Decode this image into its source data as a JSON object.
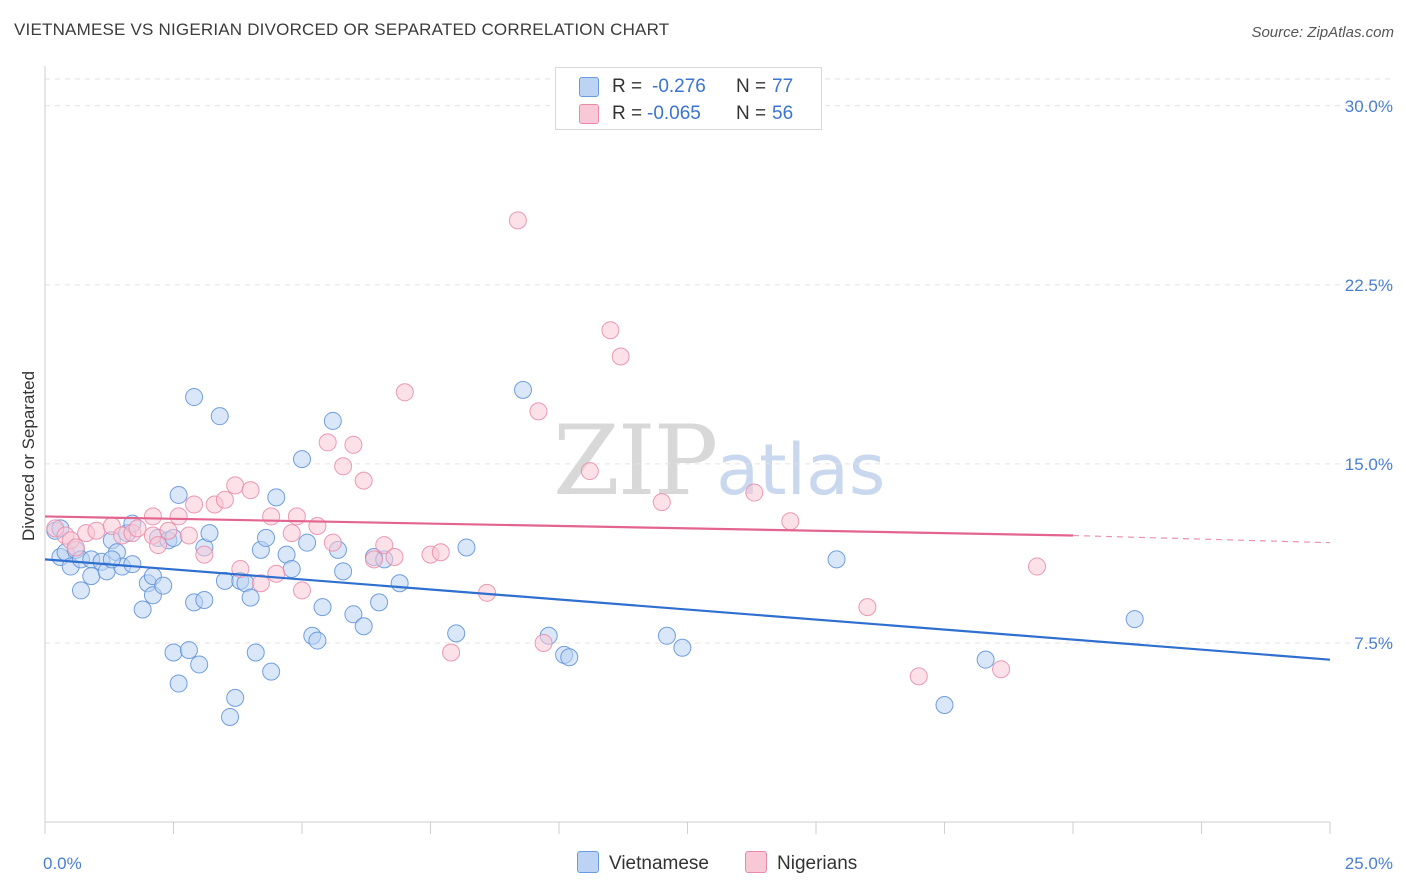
{
  "title": "VIETNAMESE VS NIGERIAN DIVORCED OR SEPARATED CORRELATION CHART",
  "source": "Source: ZipAtlas.com",
  "watermark": {
    "zip": "ZIP",
    "atlas": "atlas"
  },
  "legend": {
    "rows": [
      {
        "r_label": "R =",
        "r_value": "-0.276",
        "n_label": "N =",
        "n_value": "77",
        "color": "#6a9be0",
        "fill": "#bcd3f3"
      },
      {
        "r_label": "R =",
        "r_value": "-0.065",
        "n_label": "N =",
        "n_value": "56",
        "color": "#e88aa8",
        "fill": "#f9c8d6"
      }
    ],
    "bottom": [
      "Vietnamese",
      "Nigerians"
    ]
  },
  "chart_data": {
    "type": "scatter",
    "title": "VIETNAMESE VS NIGERIAN DIVORCED OR SEPARATED CORRELATION CHART",
    "xlabel": "",
    "ylabel": "Divorced or Separated",
    "xlim": [
      0,
      25
    ],
    "ylim": [
      0,
      31.5
    ],
    "x_ticks_labels": [
      "0.0%",
      "25.0%"
    ],
    "y_ticks": [
      7.5,
      15.0,
      22.5,
      30.0
    ],
    "y_ticks_labels": [
      "7.5%",
      "15.0%",
      "22.5%",
      "30.0%"
    ],
    "grid": "horizontal dashed",
    "series": [
      {
        "name": "Vietnamese",
        "color": "#5b8fd8",
        "fill": "#bcd3f3",
        "trend": {
          "x": [
            0,
            25
          ],
          "y": [
            11.0,
            6.8
          ],
          "color": "#2f6fd0"
        },
        "points": [
          [
            0.2,
            12.2
          ],
          [
            0.3,
            11.1
          ],
          [
            0.4,
            11.3
          ],
          [
            0.6,
            11.4
          ],
          [
            0.5,
            10.7
          ],
          [
            0.7,
            11.0
          ],
          [
            0.9,
            11.0
          ],
          [
            0.7,
            9.7
          ],
          [
            0.9,
            10.3
          ],
          [
            1.1,
            10.9
          ],
          [
            1.2,
            10.5
          ],
          [
            1.3,
            11.8
          ],
          [
            1.4,
            11.3
          ],
          [
            1.5,
            10.7
          ],
          [
            1.6,
            12.1
          ],
          [
            1.7,
            10.8
          ],
          [
            1.7,
            12.5
          ],
          [
            1.9,
            8.9
          ],
          [
            2.0,
            10.0
          ],
          [
            2.1,
            9.5
          ],
          [
            2.1,
            10.3
          ],
          [
            2.2,
            11.9
          ],
          [
            2.3,
            9.9
          ],
          [
            2.4,
            11.8
          ],
          [
            2.5,
            7.1
          ],
          [
            2.6,
            5.8
          ],
          [
            2.6,
            13.7
          ],
          [
            2.8,
            7.2
          ],
          [
            2.9,
            17.8
          ],
          [
            2.9,
            9.2
          ],
          [
            3.0,
            6.6
          ],
          [
            3.1,
            11.5
          ],
          [
            3.1,
            9.3
          ],
          [
            3.2,
            12.1
          ],
          [
            3.4,
            17.0
          ],
          [
            3.5,
            10.1
          ],
          [
            3.6,
            4.4
          ],
          [
            3.7,
            5.2
          ],
          [
            3.8,
            10.1
          ],
          [
            3.9,
            10.0
          ],
          [
            4.0,
            9.4
          ],
          [
            4.1,
            7.1
          ],
          [
            4.2,
            11.4
          ],
          [
            4.3,
            11.9
          ],
          [
            4.4,
            6.3
          ],
          [
            4.5,
            13.6
          ],
          [
            4.7,
            11.2
          ],
          [
            4.8,
            10.6
          ],
          [
            5.0,
            15.2
          ],
          [
            5.1,
            11.7
          ],
          [
            5.2,
            7.8
          ],
          [
            5.3,
            7.6
          ],
          [
            5.4,
            9.0
          ],
          [
            5.6,
            16.8
          ],
          [
            5.7,
            11.4
          ],
          [
            5.8,
            10.5
          ],
          [
            6.0,
            8.7
          ],
          [
            6.2,
            8.2
          ],
          [
            6.4,
            11.1
          ],
          [
            6.5,
            9.2
          ],
          [
            6.6,
            11.0
          ],
          [
            6.9,
            10.0
          ],
          [
            8.0,
            7.9
          ],
          [
            8.2,
            11.5
          ],
          [
            9.3,
            18.1
          ],
          [
            9.8,
            7.8
          ],
          [
            10.1,
            7.0
          ],
          [
            10.2,
            6.9
          ],
          [
            12.1,
            7.8
          ],
          [
            12.4,
            7.3
          ],
          [
            15.4,
            11.0
          ],
          [
            17.5,
            4.9
          ],
          [
            18.3,
            6.8
          ],
          [
            21.2,
            8.5
          ],
          [
            0.3,
            12.3
          ],
          [
            1.3,
            11.0
          ],
          [
            2.5,
            11.9
          ]
        ]
      },
      {
        "name": "Nigerians",
        "color": "#e88aa8",
        "fill": "#f9c8d6",
        "trend": {
          "x": [
            0,
            20
          ],
          "y": [
            12.8,
            12.0
          ],
          "dashed_to": [
            25,
            11.7
          ],
          "color": "#e3648e"
        },
        "points": [
          [
            0.2,
            12.3
          ],
          [
            0.4,
            12.0
          ],
          [
            0.5,
            11.8
          ],
          [
            0.6,
            11.5
          ],
          [
            0.8,
            12.1
          ],
          [
            1.0,
            12.2
          ],
          [
            1.3,
            12.4
          ],
          [
            1.5,
            12.0
          ],
          [
            1.7,
            12.1
          ],
          [
            1.8,
            12.3
          ],
          [
            2.1,
            12.0
          ],
          [
            2.1,
            12.8
          ],
          [
            2.2,
            11.6
          ],
          [
            2.4,
            12.2
          ],
          [
            2.6,
            12.8
          ],
          [
            2.8,
            12.0
          ],
          [
            2.9,
            13.3
          ],
          [
            3.1,
            11.2
          ],
          [
            3.3,
            13.3
          ],
          [
            3.5,
            13.5
          ],
          [
            3.7,
            14.1
          ],
          [
            3.8,
            10.6
          ],
          [
            4.0,
            13.9
          ],
          [
            4.2,
            10.0
          ],
          [
            4.4,
            12.8
          ],
          [
            4.5,
            10.4
          ],
          [
            4.8,
            12.1
          ],
          [
            4.9,
            12.8
          ],
          [
            5.0,
            9.7
          ],
          [
            5.3,
            12.4
          ],
          [
            5.5,
            15.9
          ],
          [
            5.6,
            11.7
          ],
          [
            5.8,
            14.9
          ],
          [
            6.0,
            15.8
          ],
          [
            6.2,
            14.3
          ],
          [
            6.4,
            11.0
          ],
          [
            6.6,
            11.6
          ],
          [
            6.8,
            11.1
          ],
          [
            7.0,
            18.0
          ],
          [
            7.5,
            11.2
          ],
          [
            7.7,
            11.3
          ],
          [
            7.9,
            7.1
          ],
          [
            8.6,
            9.6
          ],
          [
            9.2,
            25.2
          ],
          [
            9.6,
            17.2
          ],
          [
            9.7,
            7.5
          ],
          [
            10.6,
            14.7
          ],
          [
            11.0,
            20.6
          ],
          [
            11.2,
            19.5
          ],
          [
            12.0,
            13.4
          ],
          [
            13.8,
            13.8
          ],
          [
            14.5,
            12.6
          ],
          [
            16.0,
            9.0
          ],
          [
            17.0,
            6.1
          ],
          [
            18.6,
            6.4
          ],
          [
            19.3,
            10.7
          ]
        ]
      }
    ]
  }
}
